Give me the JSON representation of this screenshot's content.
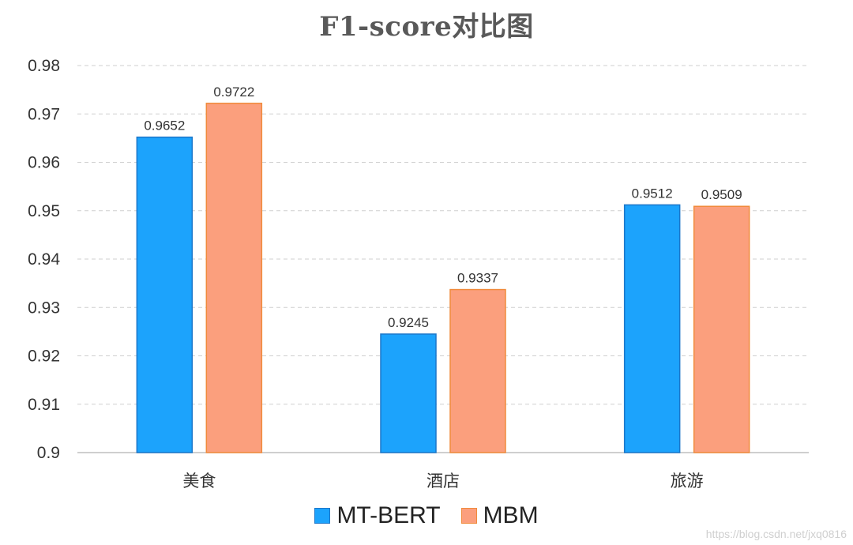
{
  "chart_data": {
    "type": "bar",
    "title": "F1-score对比图",
    "xlabel": "",
    "ylabel": "",
    "categories": [
      "美食",
      "酒店",
      "旅游"
    ],
    "series": [
      {
        "name": "MT-BERT",
        "values": [
          0.9652,
          0.9245,
          0.9512
        ],
        "value_labels": [
          "0.9652",
          "0.9245",
          "0.9512"
        ],
        "color": "#1ca3fc",
        "border_color": "#1b76c9"
      },
      {
        "name": "MBM",
        "values": [
          0.9722,
          0.9337,
          0.9509
        ],
        "value_labels": [
          "0.9722",
          "0.9337",
          "0.9509"
        ],
        "color": "#fb9f7d",
        "border_color": "#f08b3c"
      }
    ],
    "ylim": [
      0.9,
      0.98
    ],
    "yticks": [
      0.9,
      0.91,
      0.92,
      0.93,
      0.94,
      0.95,
      0.96,
      0.97,
      0.98
    ],
    "ytick_labels": [
      "0.9",
      "0.91",
      "0.92",
      "0.93",
      "0.94",
      "0.95",
      "0.96",
      "0.97",
      "0.98"
    ],
    "grid": true,
    "legend_position": "bottom-center"
  },
  "watermark": "https://blog.csdn.net/jxq0816"
}
